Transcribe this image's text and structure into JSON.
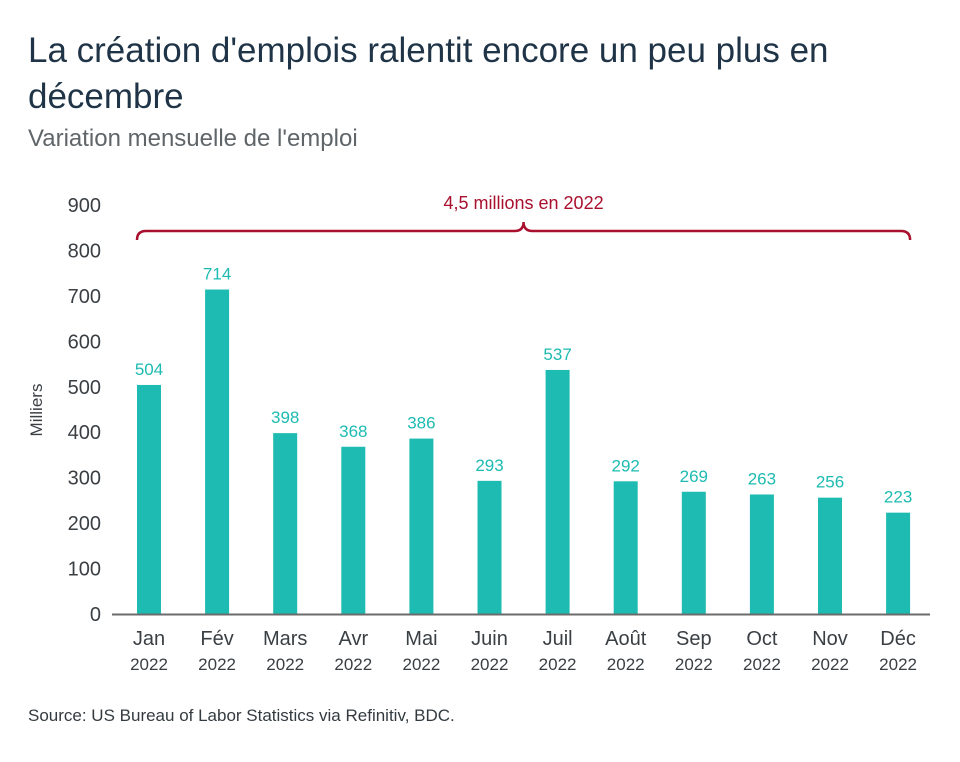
{
  "title": "La création d'emplois ralentit encore un peu plus en décembre",
  "subtitle": "Variation mensuelle de l'emploi",
  "source": "Source: US Bureau of Labor Statistics via Refinitiv, BDC.",
  "colors": {
    "bar": "#1dbbb1",
    "bar_label": "#1dbbb1",
    "annotation": "#a8102e",
    "axis": "#6b6b6b",
    "tick_text": "#3a3f44"
  },
  "chart_data": {
    "type": "bar",
    "categories": [
      "Jan",
      "Fév",
      "Mars",
      "Avr",
      "Mai",
      "Juin",
      "Juil",
      "Août",
      "Sep",
      "Oct",
      "Nov",
      "Déc"
    ],
    "category_sublabels": [
      "2022",
      "2022",
      "2022",
      "2022",
      "2022",
      "2022",
      "2022",
      "2022",
      "2022",
      "2022",
      "2022",
      "2022"
    ],
    "values": [
      504,
      714,
      398,
      368,
      386,
      293,
      537,
      292,
      269,
      263,
      256,
      223
    ],
    "ylabel": "Milliers",
    "ylim": [
      0,
      900
    ],
    "yticks": [
      0,
      100,
      200,
      300,
      400,
      500,
      600,
      700,
      800,
      900
    ],
    "grid": false,
    "annotation": {
      "text": "4,5 millions en 2022",
      "type": "brace",
      "from_category": "Jan",
      "to_category": "Déc"
    }
  }
}
